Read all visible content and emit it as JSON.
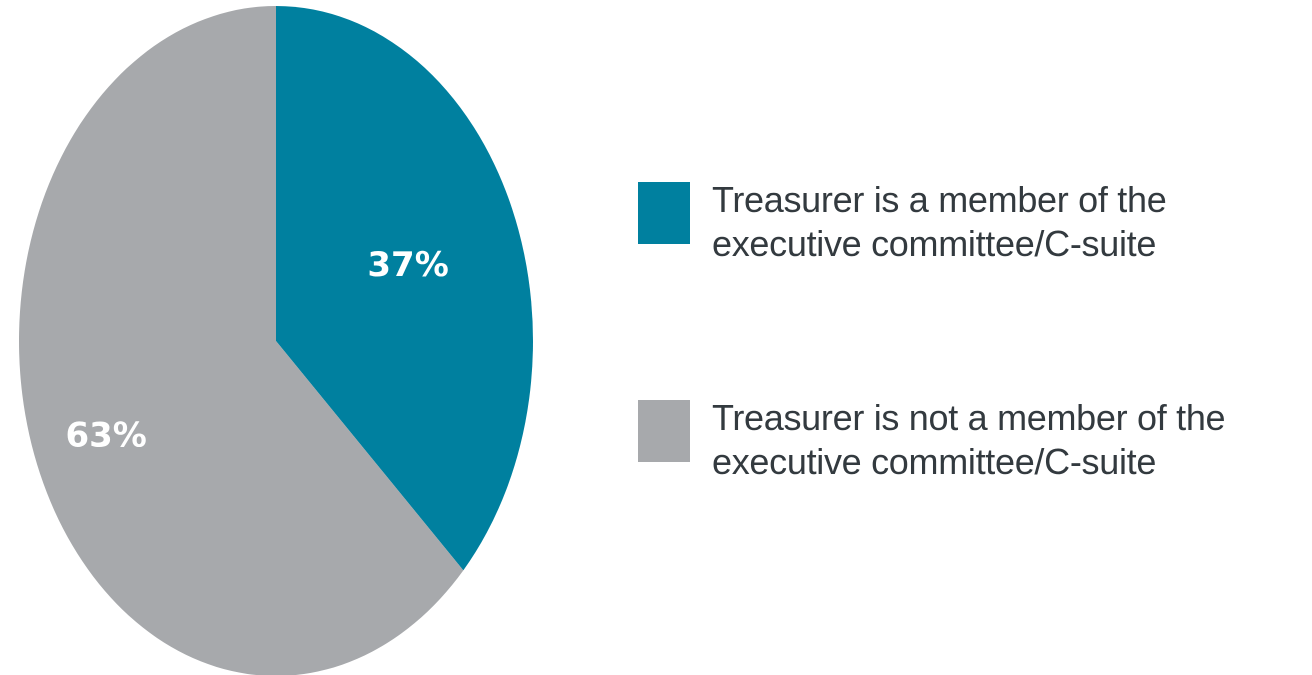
{
  "chart_data": {
    "type": "pie",
    "slices": [
      {
        "label_line1": "Treasurer is a member of the",
        "label_line2": "executive committee/C-suite",
        "value": 37,
        "display": "37%",
        "color": "#00809f"
      },
      {
        "label_line1": "Treasurer is not a member of the",
        "label_line2": "executive committee/C-suite",
        "value": 63,
        "display": "63%",
        "color": "#a7a9ac"
      }
    ],
    "start_angle": "12 o'clock",
    "direction": "clockwise",
    "legend_position": "right"
  }
}
